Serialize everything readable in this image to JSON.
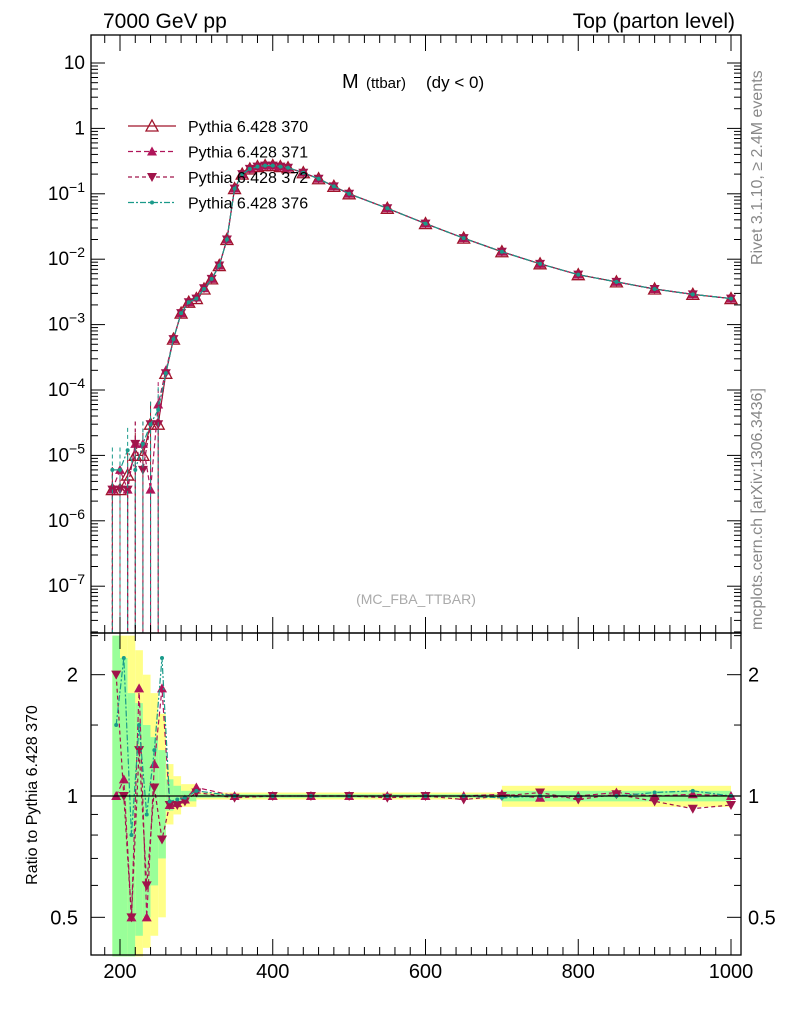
{
  "header": {
    "left": "7000 GeV pp",
    "right": "Top (parton level)"
  },
  "side_labels": {
    "rivet": "Rivet 3.1.10, ≥ 2.4M events",
    "mcplots": "mcplots.cern.ch [arXiv:1306.3436]"
  },
  "plot_title": {
    "main": "M",
    "sub": "(ttbar)",
    "cond": "(dy < 0)"
  },
  "watermark": "(MC_FBA_TTBAR)",
  "ratio_ylabel": "Ratio to Pythia 6.428 370",
  "colors": {
    "s370": "#a0142a",
    "s371": "#b0155a",
    "s372": "#a0144a",
    "s376": "#1a9a8a",
    "band_inner": "#99ff99",
    "band_outer": "#ffff88"
  },
  "chart_data": [
    {
      "type": "line",
      "yscale": "log",
      "xlim": [
        165,
        1000
      ],
      "ylim": [
        2e-08,
        25
      ],
      "yticks": [
        "10",
        "1",
        "10⁻¹",
        "10⁻²",
        "10⁻³",
        "10⁻⁴",
        "10⁻⁵",
        "10⁻⁶",
        "10⁻⁷"
      ],
      "legend": [
        "Pythia 6.428 370",
        "Pythia 6.428 371",
        "Pythia 6.428 372",
        "Pythia 6.428 376"
      ],
      "legend_position": "top-left",
      "series": [
        {
          "name": "Pythia 6.428 370",
          "marker": "open-triangle-up",
          "x": [
            190,
            200,
            210,
            220,
            230,
            240,
            250,
            260,
            270,
            280,
            290,
            300,
            310,
            320,
            330,
            340,
            350,
            360,
            370,
            380,
            390,
            400,
            410,
            420,
            440,
            460,
            480,
            500,
            550,
            600,
            650,
            700,
            750,
            800,
            850,
            900,
            950,
            1000
          ],
          "y": [
            3e-06,
            3e-06,
            5e-06,
            1e-05,
            1e-05,
            3e-05,
            3e-05,
            0.00018,
            0.0006,
            0.0015,
            0.0022,
            0.0025,
            0.0035,
            0.005,
            0.008,
            0.02,
            0.12,
            0.2,
            0.24,
            0.26,
            0.27,
            0.27,
            0.26,
            0.25,
            0.21,
            0.17,
            0.13,
            0.1,
            0.06,
            0.035,
            0.021,
            0.013,
            0.0085,
            0.0058,
            0.0045,
            0.0035,
            0.0029,
            0.0025
          ]
        },
        {
          "name": "Pythia 6.428 371",
          "marker": "filled-triangle-up",
          "x": [
            190,
            200,
            210,
            220,
            230,
            240,
            250,
            260,
            270,
            280,
            290,
            300,
            310,
            320,
            330,
            340,
            350,
            360,
            370,
            380,
            390,
            400,
            410,
            420,
            440,
            460,
            480,
            500,
            550,
            600,
            650,
            700,
            750,
            800,
            850,
            900,
            950,
            1000
          ],
          "y": [
            3e-06,
            6e-06,
            3e-06,
            1.5e-05,
            1.5e-05,
            3e-06,
            6e-05,
            0.0002,
            0.0006,
            0.0015,
            0.0022,
            0.0026,
            0.0036,
            0.005,
            0.008,
            0.02,
            0.12,
            0.2,
            0.24,
            0.26,
            0.27,
            0.27,
            0.26,
            0.25,
            0.21,
            0.17,
            0.13,
            0.1,
            0.06,
            0.035,
            0.021,
            0.013,
            0.0085,
            0.0058,
            0.0045,
            0.0035,
            0.0029,
            0.0025
          ]
        },
        {
          "name": "Pythia 6.428 372",
          "marker": "filled-triangle-down",
          "x": [
            190,
            200,
            210,
            220,
            230,
            240,
            250,
            260,
            270,
            280,
            290,
            300,
            310,
            320,
            330,
            340,
            350,
            360,
            370,
            380,
            390,
            400,
            410,
            420,
            440,
            460,
            480,
            500,
            550,
            600,
            650,
            700,
            750,
            800,
            850,
            900,
            950,
            1000
          ],
          "y": [
            3e-06,
            3e-06,
            3e-06,
            1.5e-05,
            6e-06,
            3e-05,
            3e-05,
            0.00018,
            0.0006,
            0.0015,
            0.0022,
            0.0025,
            0.0036,
            0.005,
            0.008,
            0.02,
            0.12,
            0.2,
            0.24,
            0.26,
            0.27,
            0.27,
            0.26,
            0.25,
            0.21,
            0.17,
            0.13,
            0.1,
            0.06,
            0.035,
            0.021,
            0.013,
            0.0085,
            0.0058,
            0.0045,
            0.0035,
            0.0029,
            0.0025
          ]
        },
        {
          "name": "Pythia 6.428 376",
          "marker": "dot",
          "x": [
            190,
            200,
            210,
            220,
            230,
            240,
            250,
            260,
            270,
            280,
            290,
            300,
            310,
            320,
            330,
            340,
            350,
            360,
            370,
            380,
            390,
            400,
            410,
            420,
            440,
            460,
            480,
            500,
            550,
            600,
            650,
            700,
            750,
            800,
            850,
            900,
            950,
            1000
          ],
          "y": [
            6e-06,
            6e-06,
            1.2e-05,
            6e-06,
            1.5e-05,
            3e-05,
            5e-05,
            0.00018,
            0.0006,
            0.0015,
            0.0022,
            0.0025,
            0.0035,
            0.005,
            0.008,
            0.02,
            0.12,
            0.2,
            0.24,
            0.26,
            0.27,
            0.27,
            0.26,
            0.25,
            0.21,
            0.17,
            0.13,
            0.1,
            0.06,
            0.035,
            0.021,
            0.013,
            0.0085,
            0.0058,
            0.0045,
            0.0035,
            0.0029,
            0.0025
          ]
        }
      ]
    },
    {
      "type": "line",
      "yscale": "log",
      "xlim": [
        165,
        1000
      ],
      "ylim": [
        0.4,
        2.5
      ],
      "yticks": [
        "2",
        "1",
        "0.5"
      ],
      "xticks": [
        "200",
        "400",
        "600",
        "800",
        "1000"
      ],
      "ylabel": "Ratio to Pythia 6.428 370",
      "reference": 1,
      "bands": [
        {
          "x0": 190,
          "x1": 200,
          "outer": [
            0.4,
            2.5
          ],
          "inner": [
            0.4,
            2.5
          ]
        },
        {
          "x0": 200,
          "x1": 210,
          "outer": [
            0.4,
            2.5
          ],
          "inner": [
            0.4,
            2.2
          ]
        },
        {
          "x0": 210,
          "x1": 220,
          "outer": [
            0.4,
            2.5
          ],
          "inner": [
            0.4,
            1.8
          ]
        },
        {
          "x0": 220,
          "x1": 230,
          "outer": [
            0.4,
            2.3
          ],
          "inner": [
            0.45,
            1.7
          ]
        },
        {
          "x0": 230,
          "x1": 240,
          "outer": [
            0.42,
            2.0
          ],
          "inner": [
            0.5,
            1.5
          ]
        },
        {
          "x0": 240,
          "x1": 250,
          "outer": [
            0.45,
            1.8
          ],
          "inner": [
            0.6,
            1.4
          ]
        },
        {
          "x0": 250,
          "x1": 260,
          "outer": [
            0.5,
            1.6
          ],
          "inner": [
            0.7,
            1.3
          ]
        },
        {
          "x0": 260,
          "x1": 270,
          "outer": [
            0.85,
            1.2
          ],
          "inner": [
            0.92,
            1.1
          ]
        },
        {
          "x0": 270,
          "x1": 280,
          "outer": [
            0.9,
            1.12
          ],
          "inner": [
            0.95,
            1.06
          ]
        },
        {
          "x0": 280,
          "x1": 300,
          "outer": [
            0.94,
            1.07
          ],
          "inner": [
            0.97,
            1.03
          ]
        },
        {
          "x0": 300,
          "x1": 700,
          "outer": [
            0.98,
            1.02
          ],
          "inner": [
            0.99,
            1.01
          ]
        },
        {
          "x0": 700,
          "x1": 1000,
          "outer": [
            0.94,
            1.06
          ],
          "inner": [
            0.97,
            1.03
          ]
        }
      ],
      "series": [
        {
          "name": "Pythia 6.428 371",
          "marker": "filled-triangle-up",
          "x": [
            195,
            205,
            215,
            225,
            235,
            245,
            255,
            265,
            275,
            285,
            300,
            350,
            400,
            450,
            500,
            550,
            600,
            650,
            700,
            750,
            800,
            850,
            900,
            950,
            1000
          ],
          "y": [
            1.0,
            1.1,
            0.5,
            1.85,
            0.5,
            1.2,
            1.85,
            0.95,
            0.96,
            0.98,
            1.05,
            1.0,
            1.0,
            1.0,
            1.0,
            1.0,
            1.0,
            1.0,
            1.01,
            0.99,
            1.0,
            1.02,
            1.0,
            1.01,
            1.0
          ]
        },
        {
          "name": "Pythia 6.428 372",
          "marker": "filled-triangle-down",
          "x": [
            195,
            205,
            215,
            225,
            235,
            245,
            255,
            265,
            275,
            285,
            300,
            350,
            400,
            450,
            500,
            550,
            600,
            650,
            700,
            750,
            800,
            850,
            900,
            950,
            1000
          ],
          "y": [
            2.0,
            1.0,
            0.5,
            1.3,
            0.6,
            1.05,
            0.78,
            0.95,
            0.95,
            0.97,
            1.02,
            0.99,
            1.0,
            1.0,
            1.0,
            0.99,
            1.0,
            0.98,
            1.0,
            1.02,
            0.98,
            1.01,
            0.97,
            0.93,
            0.95
          ]
        },
        {
          "name": "Pythia 6.428 376",
          "marker": "dot",
          "x": [
            195,
            205,
            215,
            225,
            235,
            245,
            255,
            265,
            275,
            285,
            300,
            350,
            400,
            450,
            500,
            550,
            600,
            650,
            700,
            750,
            800,
            850,
            900,
            950,
            1000
          ],
          "y": [
            1.5,
            2.2,
            0.8,
            1.5,
            0.9,
            1.3,
            2.2,
            0.97,
            0.98,
            0.99,
            1.03,
            1.0,
            1.0,
            1.0,
            1.0,
            1.0,
            1.0,
            1.0,
            0.99,
            1.0,
            1.0,
            1.0,
            1.02,
            1.03,
            1.0
          ]
        }
      ]
    }
  ]
}
